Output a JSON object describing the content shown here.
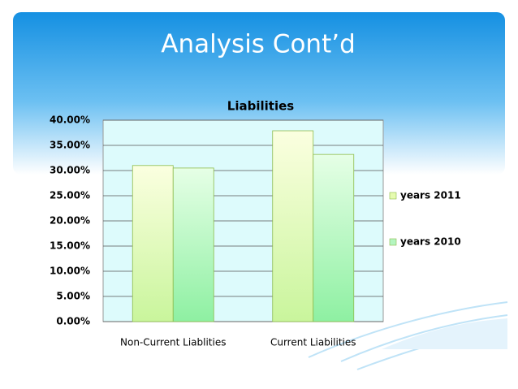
{
  "slide_title": "Analysis Cont’d",
  "chart_data": {
    "type": "bar",
    "title": "Liabilities",
    "categories": [
      "Non-Current Liablities",
      "Current Liabilities"
    ],
    "series": [
      {
        "name": "years 2011",
        "color": "#e6fbb0",
        "values": [
          31.0,
          37.9
        ]
      },
      {
        "name": "years 2010",
        "color": "#b4f5c0",
        "values": [
          30.5,
          33.2
        ]
      }
    ],
    "ylim": [
      0,
      40
    ],
    "yticks": [
      {
        "value": 0,
        "label": "0.00%"
      },
      {
        "value": 5,
        "label": "5.00%"
      },
      {
        "value": 10,
        "label": "10.00%"
      },
      {
        "value": 15,
        "label": "15.00%"
      },
      {
        "value": 20,
        "label": "20.00%"
      },
      {
        "value": 25,
        "label": "25.00%"
      },
      {
        "value": 30,
        "label": "30.00%"
      },
      {
        "value": 35,
        "label": "35.00%"
      },
      {
        "value": 40,
        "label": "40.00%"
      }
    ],
    "grid": true,
    "legend": "right"
  }
}
